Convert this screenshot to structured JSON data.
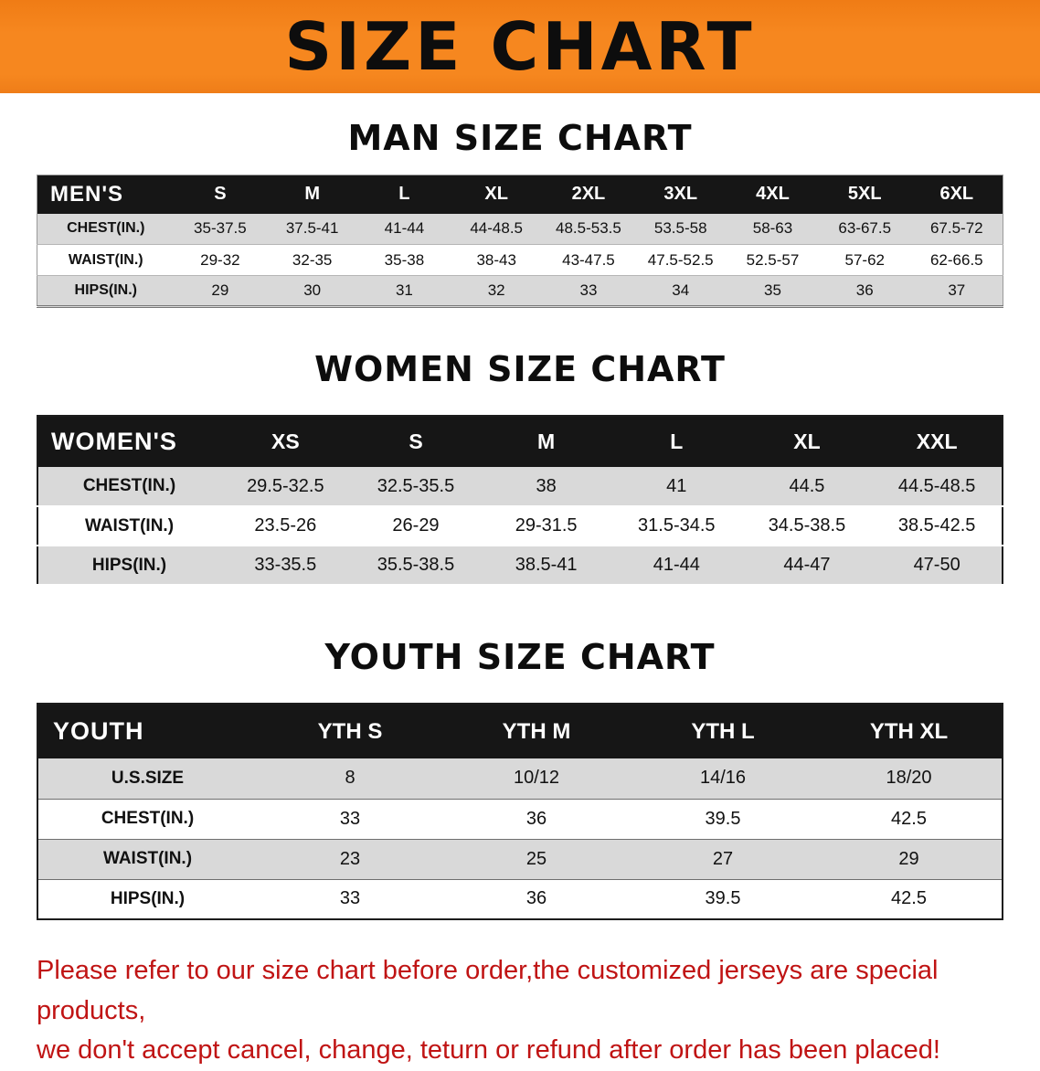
{
  "banner": {
    "title": "SIZE CHART"
  },
  "sections": [
    {
      "heading": "MAN SIZE CHART",
      "table": {
        "header": [
          "MEN'S",
          "S",
          "M",
          "L",
          "XL",
          "2XL",
          "3XL",
          "4XL",
          "5XL",
          "6XL"
        ],
        "rows": [
          [
            "CHEST(IN.)",
            "35-37.5",
            "37.5-41",
            "41-44",
            "44-48.5",
            "48.5-53.5",
            "53.5-58",
            "58-63",
            "63-67.5",
            "67.5-72"
          ],
          [
            "WAIST(IN.)",
            "29-32",
            "32-35",
            "35-38",
            "38-43",
            "43-47.5",
            "47.5-52.5",
            "52.5-57",
            "57-62",
            "62-66.5"
          ],
          [
            "HIPS(IN.)",
            "29",
            "30",
            "31",
            "32",
            "33",
            "34",
            "35",
            "36",
            "37"
          ]
        ]
      }
    },
    {
      "heading": "WOMEN SIZE CHART",
      "table": {
        "header": [
          "WOMEN'S",
          "XS",
          "S",
          "M",
          "L",
          "XL",
          "XXL"
        ],
        "rows": [
          [
            "CHEST(IN.)",
            "29.5-32.5",
            "32.5-35.5",
            "38",
            "41",
            "44.5",
            "44.5-48.5"
          ],
          [
            "WAIST(IN.)",
            "23.5-26",
            "26-29",
            "29-31.5",
            "31.5-34.5",
            "34.5-38.5",
            "38.5-42.5"
          ],
          [
            "HIPS(IN.)",
            "33-35.5",
            "35.5-38.5",
            "38.5-41",
            "41-44",
            "44-47",
            "47-50"
          ]
        ]
      }
    },
    {
      "heading": "YOUTH SIZE CHART",
      "table": {
        "header": [
          "YOUTH",
          "YTH S",
          "YTH M",
          "YTH L",
          "YTH XL"
        ],
        "rows": [
          [
            "U.S.SIZE",
            "8",
            "10/12",
            "14/16",
            "18/20"
          ],
          [
            "CHEST(IN.)",
            "33",
            "36",
            "39.5",
            "42.5"
          ],
          [
            "WAIST(IN.)",
            "23",
            "25",
            "27",
            "29"
          ],
          [
            "HIPS(IN.)",
            "33",
            "36",
            "39.5",
            "42.5"
          ]
        ]
      }
    }
  ],
  "footer": {
    "line1": "Please refer to our size chart before order,the customized jerseys are special products,",
    "line2": "we don't accept cancel, change, teturn or refund after order has been placed!"
  },
  "colors": {
    "banner_orange": "#f6871f",
    "header_black": "#161616",
    "stripe_gray": "#d9d9d9",
    "footer_red": "#c01414"
  }
}
